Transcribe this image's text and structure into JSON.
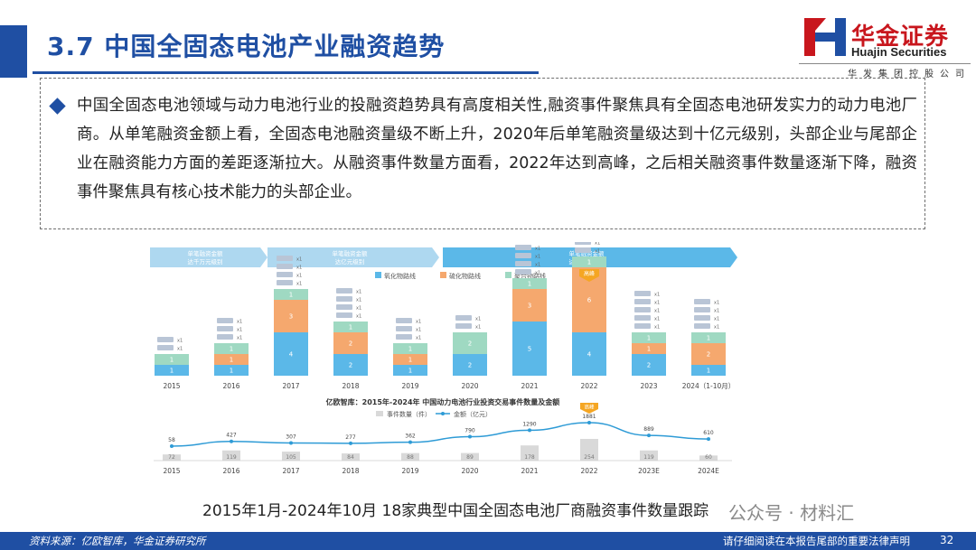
{
  "header": {
    "title": "3.7 中国全固态电池产业融资趋势",
    "logo_cn": "华金证券",
    "logo_en": "Huajin Securities",
    "logo_sub": "华发集团控股公司"
  },
  "colors": {
    "brand_blue": "#1f4fa3",
    "brand_red": "#c8161d"
  },
  "summary": {
    "icon": "diamond-bullet-icon",
    "text": "中国全固态电池领域与动力电池行业的投融资趋势具有高度相关性,融资事件聚焦具有全固态电池研发实力的动力电池厂商。从单笔融资金额上看，全固态电池融资量级不断上升，2020年后单笔融资量级达到十亿元级别，头部企业与尾部企业在融资能力方面的差距逐渐拉大。从融资事件数量方面看，2022年达到高峰，之后相关融资事件数量逐渐下降，融资事件聚焦具有核心技术能力的头部企业。"
  },
  "chart_data": [
    {
      "type": "bar",
      "subtype": "stacked",
      "banners": [
        {
          "line1": "单笔融资金额",
          "line2": "达千万元级别"
        },
        {
          "line1": "单笔融资金额",
          "line2": "达亿元级别"
        },
        {
          "line1": "单笔融资金额",
          "line2": "达十亿元级别"
        }
      ],
      "peak_badge": "高峰",
      "categories": [
        "2015",
        "2016",
        "2017",
        "2018",
        "2019",
        "2020",
        "2021",
        "2022",
        "2023",
        "2024（1-10月）"
      ],
      "series": [
        {
          "name": "氧化物路线",
          "color": "#5bb8e8",
          "values": [
            1,
            1,
            4,
            2,
            1,
            2,
            5,
            4,
            2,
            1
          ]
        },
        {
          "name": "硫化物路线",
          "color": "#f5a86e",
          "values": [
            0,
            1,
            3,
            2,
            1,
            0,
            3,
            6,
            1,
            2
          ]
        },
        {
          "name": "聚合物路线",
          "color": "#9fd9c2",
          "values": [
            1,
            1,
            1,
            1,
            1,
            2,
            1,
            1,
            1,
            1
          ]
        }
      ],
      "bar_labels": [
        [
          "1",
          "",
          "1"
        ],
        [
          "1",
          "1",
          "1"
        ],
        [
          "4",
          "3",
          "1"
        ],
        [
          "2",
          "2",
          "1"
        ],
        [
          "1",
          "1",
          "1"
        ],
        [
          "2",
          "",
          "2"
        ],
        [
          "5",
          "3",
          "1"
        ],
        [
          "4",
          "6",
          "1"
        ],
        [
          "2",
          "1",
          "1"
        ],
        [
          "1",
          "2",
          "1"
        ]
      ],
      "legend_position": "top-center"
    },
    {
      "type": "line",
      "title": "亿欧智库：2015年-2024年 中国动力电池行业投资交易事件数量及金额",
      "legend": [
        "事件数量（件）",
        "金额（亿元）"
      ],
      "categories": [
        "2015",
        "2016",
        "2017",
        "2018",
        "2019",
        "2020",
        "2021",
        "2022",
        "2023E",
        "2024E"
      ],
      "series": [
        {
          "name": "事件数量（件）",
          "type": "bar",
          "color": "#d9d9d9",
          "values": [
            72,
            119,
            105,
            84,
            88,
            89,
            178,
            254,
            119,
            60
          ]
        },
        {
          "name": "金额（亿元）",
          "type": "line",
          "color": "#2e9bd6",
          "values": [
            58,
            427,
            307,
            277,
            362,
            790,
            1290,
            1881,
            889,
            610
          ]
        }
      ],
      "peak_badge": "高峰",
      "legend_position": "top-center"
    }
  ],
  "caption": "2015年1月-2024年10月 18家典型中国全固态电池厂商融资事件数量跟踪",
  "watermark": "公众号 · 材料汇",
  "footer": {
    "source": "资料来源：亿欧智库，华金证券研究所",
    "disclaimer": "请仔细阅读在本报告尾部的重要法律声明",
    "page": "32"
  }
}
